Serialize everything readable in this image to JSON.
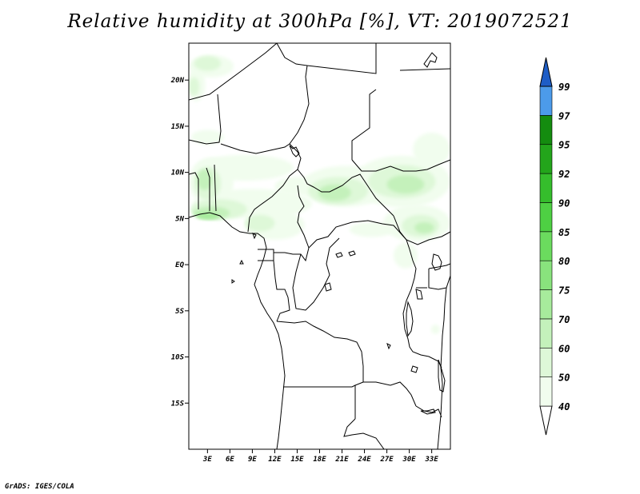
{
  "title": "Relative humidity at 300hPa [%], VT: 2019072521",
  "credit": "GrADS: IGES/COLA",
  "map": {
    "projection": "latlon",
    "lon_range": [
      0.5,
      35.5
    ],
    "lat_range": [
      -20,
      24
    ],
    "lat_ticks": [
      {
        "value": 20,
        "label": "20N"
      },
      {
        "value": 15,
        "label": "15N"
      },
      {
        "value": 10,
        "label": "10N"
      },
      {
        "value": 5,
        "label": "5N"
      },
      {
        "value": 0,
        "label": "EQ"
      },
      {
        "value": -5,
        "label": "5S"
      },
      {
        "value": -10,
        "label": "10S"
      },
      {
        "value": -15,
        "label": "15S"
      }
    ],
    "lon_ticks": [
      {
        "value": 3,
        "label": "3E"
      },
      {
        "value": 6,
        "label": "6E"
      },
      {
        "value": 9,
        "label": "9E"
      },
      {
        "value": 12,
        "label": "12E"
      },
      {
        "value": 15,
        "label": "15E"
      },
      {
        "value": 18,
        "label": "18E"
      },
      {
        "value": 21,
        "label": "21E"
      },
      {
        "value": 24,
        "label": "24E"
      },
      {
        "value": 27,
        "label": "27E"
      },
      {
        "value": 30,
        "label": "30E"
      },
      {
        "value": 33,
        "label": "33E"
      }
    ],
    "humidity_regions": [
      {
        "level": 40,
        "lon": 3.5,
        "lat": 21.5,
        "rx": 3.0,
        "ry": 1.2
      },
      {
        "level": 50,
        "lon": 3.0,
        "lat": 21.8,
        "rx": 1.8,
        "ry": 0.8
      },
      {
        "level": 40,
        "lon": 1.5,
        "lat": 19.5,
        "rx": 1.2,
        "ry": 1.8
      },
      {
        "level": 50,
        "lon": 1.2,
        "lat": 19.3,
        "rx": 0.7,
        "ry": 1.0
      },
      {
        "level": 40,
        "lon": 3.0,
        "lat": 13.8,
        "rx": 2.2,
        "ry": 0.8
      },
      {
        "level": 40,
        "lon": 8.0,
        "lat": 10.5,
        "rx": 6.5,
        "ry": 1.4
      },
      {
        "level": 40,
        "lon": 3.5,
        "lat": 9.0,
        "rx": 3.0,
        "ry": 2.6
      },
      {
        "level": 50,
        "lon": 3.0,
        "lat": 8.8,
        "rx": 1.8,
        "ry": 1.8
      },
      {
        "level": 60,
        "lon": 2.6,
        "lat": 9.2,
        "rx": 1.0,
        "ry": 1.1
      },
      {
        "level": 40,
        "lon": 9.0,
        "lat": 6.6,
        "rx": 8.0,
        "ry": 1.6
      },
      {
        "level": 50,
        "lon": 4.5,
        "lat": 6.0,
        "rx": 3.8,
        "ry": 1.1
      },
      {
        "level": 60,
        "lon": 3.5,
        "lat": 5.6,
        "rx": 2.5,
        "ry": 0.7
      },
      {
        "level": 70,
        "lon": 3.0,
        "lat": 5.3,
        "rx": 1.5,
        "ry": 0.4
      },
      {
        "level": 40,
        "lon": 12.0,
        "lat": 4.3,
        "rx": 4.0,
        "ry": 1.6
      },
      {
        "level": 50,
        "lon": 10.0,
        "lat": 4.5,
        "rx": 2.0,
        "ry": 0.9
      },
      {
        "level": 40,
        "lon": 15.0,
        "lat": 8.5,
        "rx": 3.0,
        "ry": 1.0
      },
      {
        "level": 40,
        "lon": 21.5,
        "lat": 8.5,
        "rx": 6.0,
        "ry": 2.2
      },
      {
        "level": 50,
        "lon": 20.5,
        "lat": 8.0,
        "rx": 4.0,
        "ry": 1.5
      },
      {
        "level": 60,
        "lon": 20.0,
        "lat": 7.8,
        "rx": 2.2,
        "ry": 0.9
      },
      {
        "level": 40,
        "lon": 29.0,
        "lat": 9.0,
        "rx": 6.5,
        "ry": 2.8
      },
      {
        "level": 50,
        "lon": 29.0,
        "lat": 9.0,
        "rx": 4.5,
        "ry": 1.8
      },
      {
        "level": 60,
        "lon": 29.5,
        "lat": 8.7,
        "rx": 2.5,
        "ry": 1.0
      },
      {
        "level": 40,
        "lon": 33.0,
        "lat": 12.5,
        "rx": 2.5,
        "ry": 1.8
      },
      {
        "level": 40,
        "lon": 31.0,
        "lat": 4.5,
        "rx": 4.5,
        "ry": 2.0
      },
      {
        "level": 50,
        "lon": 31.5,
        "lat": 4.2,
        "rx": 2.5,
        "ry": 1.2
      },
      {
        "level": 60,
        "lon": 32.0,
        "lat": 4.0,
        "rx": 1.3,
        "ry": 0.6
      },
      {
        "level": 40,
        "lon": 25.0,
        "lat": 3.8,
        "rx": 3.0,
        "ry": 0.8
      },
      {
        "level": 40,
        "lon": 29.5,
        "lat": 1.0,
        "rx": 1.6,
        "ry": 1.4
      },
      {
        "level": 40,
        "lon": 33.5,
        "lat": -7.0,
        "rx": 0.6,
        "ry": 0.5
      }
    ]
  },
  "colorbar": {
    "levels": [
      {
        "label": "40",
        "color": "#f1fdee"
      },
      {
        "label": "50",
        "color": "#def8d8"
      },
      {
        "label": "60",
        "color": "#c4f1bb"
      },
      {
        "label": "70",
        "color": "#a7eb9c"
      },
      {
        "label": "75",
        "color": "#89e37d"
      },
      {
        "label": "80",
        "color": "#6bdb5e"
      },
      {
        "label": "85",
        "color": "#4ed043"
      },
      {
        "label": "90",
        "color": "#35bd2c"
      },
      {
        "label": "92",
        "color": "#23a51b"
      },
      {
        "label": "95",
        "color": "#148c0f"
      },
      {
        "label": "97",
        "color": "#4c9bea"
      },
      {
        "label": "99",
        "color": "#2d7ae0"
      }
    ],
    "top_color": "#1e5dc6",
    "bottom_color": "#ffffff"
  }
}
